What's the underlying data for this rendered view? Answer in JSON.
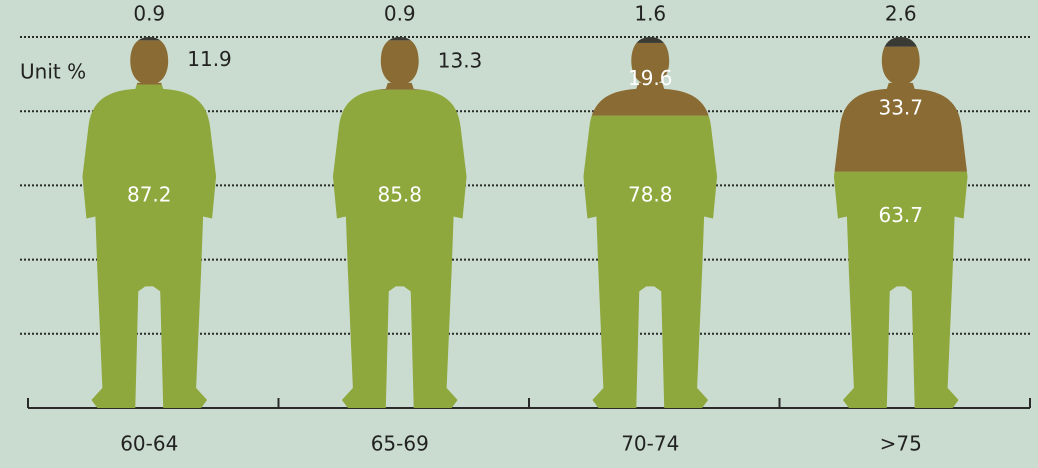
{
  "chart_data": {
    "type": "pictograph",
    "unit_label": "Unit %",
    "categories": [
      "60-64",
      "65-69",
      "70-74",
      ">75"
    ],
    "series": [
      {
        "color": "#8ea83d",
        "values": [
          87.2,
          85.8,
          78.8,
          63.7
        ]
      },
      {
        "color": "#8a6b33",
        "values": [
          11.9,
          13.3,
          19.6,
          33.7
        ]
      },
      {
        "color": "#3a3a35",
        "values": [
          0.9,
          0.9,
          1.6,
          2.6
        ]
      }
    ],
    "ylim": [
      0,
      100
    ],
    "yticks": [
      0,
      20,
      40,
      60,
      80,
      100
    ],
    "grid": true
  }
}
